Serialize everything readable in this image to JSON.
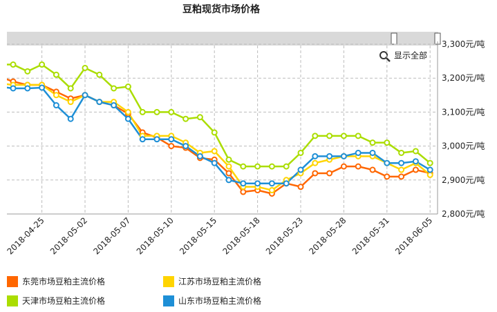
{
  "chart_data": {
    "type": "line",
    "title": "豆粕现货市场价格",
    "reset_label": "显示全部",
    "categories": [
      null,
      null,
      null,
      "2018-04-25",
      null,
      null,
      "2018-05-02",
      null,
      null,
      "2018-05-07",
      null,
      null,
      "2018-05-10",
      null,
      null,
      "2018-05-15",
      null,
      null,
      "2018-05-18",
      null,
      null,
      "2018-05-23",
      null,
      null,
      "2018-05-28",
      null,
      null,
      "2018-05-31",
      null,
      null,
      "2018-06-05"
    ],
    "series": [
      {
        "name": "东莞市场豆粕主流价格",
        "color": "#ff6600",
        "values": [
          3205,
          3190,
          3180,
          3180,
          3160,
          3140,
          3150,
          3130,
          3120,
          3095,
          3040,
          3025,
          3000,
          2995,
          2965,
          2960,
          2920,
          2865,
          2870,
          2860,
          2890,
          2880,
          2920,
          2920,
          2940,
          2940,
          2930,
          2910,
          2910,
          2930,
          2920
        ]
      },
      {
        "name": "江苏市场豆粕主流价格",
        "color": "#ffd400",
        "values": [
          3185,
          3180,
          3180,
          3180,
          3150,
          3130,
          3150,
          3130,
          3130,
          3100,
          3030,
          3030,
          3030,
          3010,
          2980,
          2985,
          2940,
          2880,
          2880,
          2870,
          2900,
          2920,
          2950,
          2960,
          2970,
          2970,
          2970,
          2950,
          2930,
          2950,
          2915
        ]
      },
      {
        "name": "天津市场豆粕主流价格",
        "color": "#aadd00",
        "values": [
          3240,
          3240,
          3220,
          3240,
          3210,
          3170,
          3230,
          3210,
          3170,
          3175,
          3100,
          3100,
          3100,
          3080,
          3085,
          3040,
          2960,
          2940,
          2940,
          2940,
          2940,
          2980,
          3030,
          3030,
          3030,
          3030,
          3010,
          3010,
          2980,
          2985,
          2950
        ]
      },
      {
        "name": "山东市场豆粕主流价格",
        "color": "#1e8fd6",
        "values": [
          3175,
          3170,
          3170,
          3172,
          3120,
          3080,
          3150,
          3130,
          3120,
          3080,
          3020,
          3020,
          3020,
          3000,
          2970,
          2950,
          2900,
          2890,
          2890,
          2890,
          2890,
          2930,
          2970,
          2970,
          2970,
          2980,
          2980,
          2950,
          2950,
          2955,
          2930
        ]
      }
    ],
    "ylim": [
      2800,
      3300
    ],
    "yticks": [
      {
        "value": 2800,
        "label": "2,800元/吨"
      },
      {
        "value": 2900,
        "label": "2,900元/吨"
      },
      {
        "value": 3000,
        "label": "3,000元/吨"
      },
      {
        "value": 3100,
        "label": "3,100元/吨"
      },
      {
        "value": 3200,
        "label": "3,200元/吨"
      },
      {
        "value": 3300,
        "label": "3,300元/吨"
      }
    ],
    "grid": true,
    "legend": "bottom"
  }
}
